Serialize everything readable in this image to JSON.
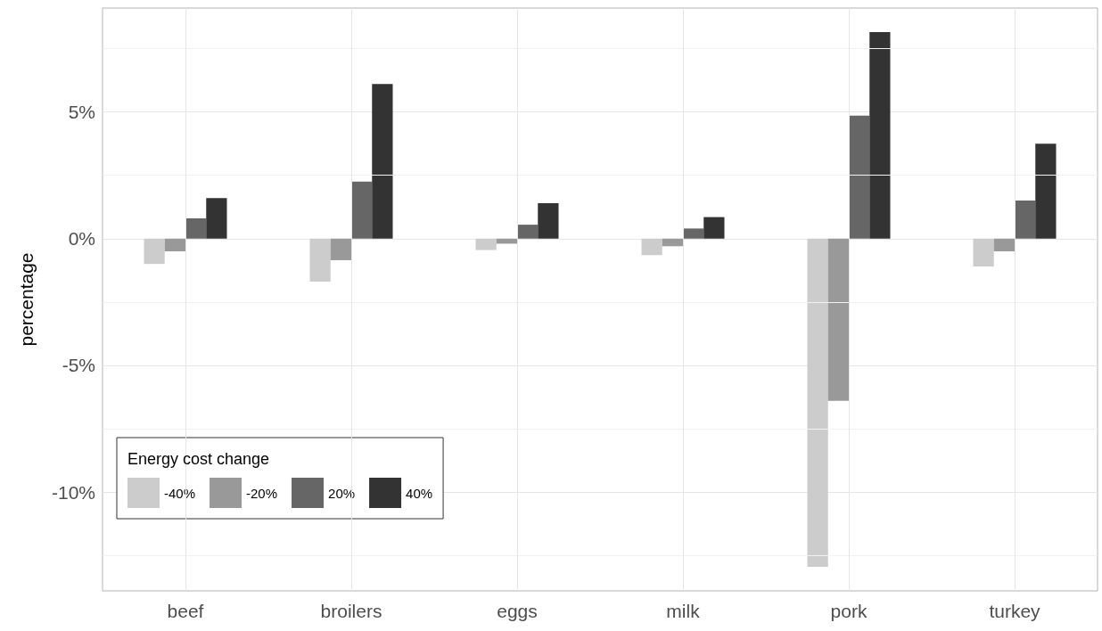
{
  "chart_data": {
    "type": "bar",
    "ylabel": "percentage",
    "legend_title": "Energy cost change",
    "legend": "bottom left",
    "grid": true,
    "categories": [
      "beef",
      "broilers",
      "eggs",
      "milk",
      "pork",
      "turkey"
    ],
    "ylim": [
      -13.9,
      9.1
    ],
    "yticks": [
      {
        "value": -12.5,
        "label": null
      },
      {
        "value": -10,
        "label": "-10%"
      },
      {
        "value": -7.5,
        "label": null
      },
      {
        "value": -5,
        "label": "-5%"
      },
      {
        "value": -2.5,
        "label": null
      },
      {
        "value": 0,
        "label": "0%"
      },
      {
        "value": 2.5,
        "label": null
      },
      {
        "value": 5,
        "label": "5%"
      },
      {
        "value": 7.5,
        "label": null
      }
    ],
    "series": [
      {
        "name": "-40%",
        "color": "#cccccc",
        "values": [
          -1.0,
          -1.7,
          -0.45,
          -0.65,
          -12.95,
          -1.1
        ]
      },
      {
        "name": "-20%",
        "color": "#999999",
        "values": [
          -0.5,
          -0.85,
          -0.2,
          -0.3,
          -6.4,
          -0.5
        ]
      },
      {
        "name": "20%",
        "color": "#666666",
        "values": [
          0.8,
          2.25,
          0.55,
          0.4,
          4.85,
          1.5
        ]
      },
      {
        "name": "40%",
        "color": "#333333",
        "values": [
          1.6,
          6.1,
          1.4,
          0.85,
          8.15,
          3.75
        ]
      }
    ]
  }
}
